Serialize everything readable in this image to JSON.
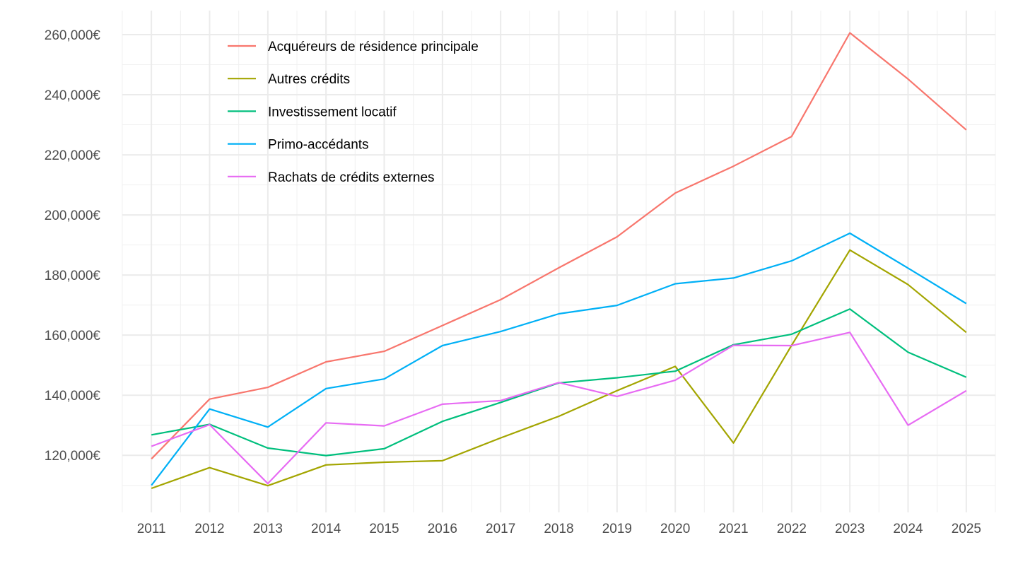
{
  "chart_data": {
    "type": "line",
    "title": "",
    "xlabel": "",
    "ylabel": "",
    "x": [
      2011,
      2012,
      2013,
      2014,
      2015,
      2016,
      2017,
      2018,
      2019,
      2020,
      2021,
      2022,
      2023,
      2024,
      2025
    ],
    "xlim": [
      2010.5,
      2025.5
    ],
    "ylim": [
      101000,
      268000
    ],
    "y_ticks": [
      120000,
      140000,
      160000,
      180000,
      200000,
      220000,
      240000,
      260000
    ],
    "y_tick_labels": [
      "120,000€",
      "140,000€",
      "160,000€",
      "180,000€",
      "200,000€",
      "220,000€",
      "240,000€",
      "260,000€"
    ],
    "x_tick_labels": [
      "2011",
      "2012",
      "2013",
      "2014",
      "2015",
      "2016",
      "2017",
      "2018",
      "2019",
      "2020",
      "2021",
      "2022",
      "2023",
      "2024",
      "2025"
    ],
    "grid": true,
    "legend_position": "top-left",
    "series": [
      {
        "name": "Acquéreurs de résidence principale",
        "color": "#F8766D",
        "values": [
          118800,
          138700,
          142600,
          151100,
          154600,
          163200,
          171800,
          182400,
          192700,
          207300,
          216200,
          226100,
          260600,
          245200,
          228300
        ]
      },
      {
        "name": "Autres crédits",
        "color": "#A3A500",
        "values": [
          109000,
          115900,
          109900,
          116800,
          117700,
          118200,
          125800,
          133000,
          141500,
          149600,
          124100,
          156600,
          188300,
          176800,
          160900
        ]
      },
      {
        "name": "Investissement locatif",
        "color": "#00BF7D",
        "values": [
          126800,
          130300,
          122400,
          119900,
          122200,
          131300,
          137600,
          144100,
          145800,
          148000,
          156800,
          160300,
          168700,
          154300,
          146000
        ]
      },
      {
        "name": "Primo-accédants",
        "color": "#00B0F6",
        "values": [
          110000,
          135400,
          129400,
          142200,
          145400,
          156500,
          161200,
          167100,
          169900,
          177100,
          179000,
          184700,
          193900,
          182300,
          170500
        ]
      },
      {
        "name": "Rachats de crédits externes",
        "color": "#E76BF3",
        "values": [
          123000,
          130200,
          110600,
          130800,
          129800,
          137000,
          138200,
          144200,
          139600,
          145000,
          156600,
          156500,
          160900,
          130000,
          141500
        ]
      }
    ]
  }
}
